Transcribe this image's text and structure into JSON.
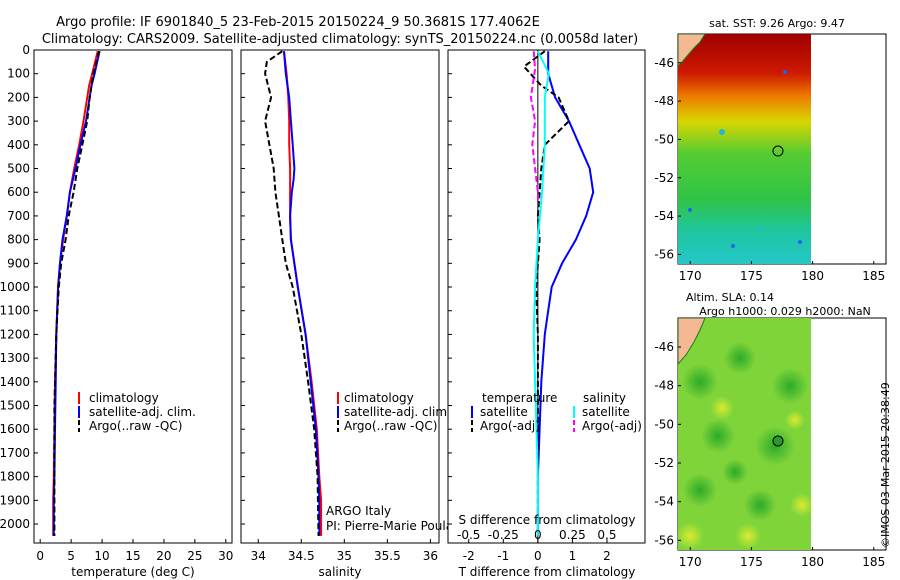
{
  "title": {
    "line1": "Argo profile: IF 6901840_5 23-Feb-2015 20150224_9 50.3681S 177.4062E",
    "line2": "Climatology: CARS2009. Satellite-adjusted climatology: synTS_20150224.nc (0.0058d later)"
  },
  "colors": {
    "climatology": "#ff0000",
    "satellite": "#0000ff",
    "argo": "#000000",
    "sal_satellite": "#00ffff",
    "sal_argo": "#ff00ff",
    "land": "#f4b992"
  },
  "chart_data": [
    {
      "id": "temperature",
      "type": "line",
      "xlabel": "temperature (deg C)",
      "ylabel": "",
      "xlim": [
        -1,
        31
      ],
      "ylim": [
        2080,
        0
      ],
      "xticks": [
        0,
        5,
        10,
        15,
        20,
        25,
        30
      ],
      "yticks": [
        0,
        100,
        200,
        300,
        400,
        500,
        600,
        700,
        800,
        900,
        1000,
        1100,
        1200,
        1300,
        1400,
        1500,
        1600,
        1700,
        1800,
        1900,
        2000
      ],
      "legend": [
        "climatology",
        "satellite-adj. clim.",
        "Argo(..raw -QC)"
      ],
      "series": [
        {
          "name": "climatology",
          "x": [
            9.3,
            8.4,
            7.9,
            7.0,
            6.3,
            5.5,
            4.8,
            4.3,
            3.7,
            3.2,
            2.9,
            2.6,
            2.4,
            2.3,
            2.2,
            2.1,
            2.1
          ],
          "y": [
            5,
            100,
            150,
            300,
            400,
            500,
            600,
            700,
            800,
            900,
            1000,
            1200,
            1400,
            1600,
            1800,
            1900,
            2050
          ]
        },
        {
          "name": "satellite-adj. clim.",
          "x": [
            9.6,
            8.8,
            8.3,
            7.4,
            6.5,
            5.7,
            4.8,
            4.3,
            3.6,
            3.2,
            2.9,
            2.6,
            2.5,
            2.4,
            2.3,
            2.2,
            2.2
          ],
          "y": [
            5,
            100,
            150,
            300,
            400,
            500,
            600,
            700,
            800,
            900,
            1000,
            1200,
            1400,
            1600,
            1800,
            1900,
            2050
          ]
        },
        {
          "name": "Argo(..raw -QC)",
          "x": [
            9.5,
            9.0,
            8.6,
            8.0,
            7.6,
            6.8,
            6.0,
            5.4,
            4.6,
            4.1,
            3.4,
            3.0,
            2.8,
            2.6,
            2.5,
            2.3,
            2.3
          ],
          "y": [
            5,
            60,
            100,
            200,
            300,
            400,
            500,
            600,
            700,
            800,
            900,
            1000,
            1100,
            1200,
            1300,
            1500,
            2050
          ]
        }
      ]
    },
    {
      "id": "salinity",
      "type": "line",
      "xlabel": "salinity",
      "xlim": [
        33.8,
        36.1
      ],
      "ylim": [
        2080,
        0
      ],
      "xticks": [
        34,
        34.5,
        35,
        35.5,
        36
      ],
      "legend": [
        "climatology",
        "satellite-adj. clim.",
        "Argo(..raw -QC)"
      ],
      "annotations": [
        "ARGO Italy",
        "PI: Pierre-Marie Poulain"
      ],
      "series": [
        {
          "name": "climatology",
          "x": [
            34.3,
            34.33,
            34.35,
            34.36,
            34.36,
            34.37,
            34.37,
            34.37,
            34.38,
            34.46,
            34.55,
            34.62,
            34.68,
            34.71,
            34.73,
            34.73
          ],
          "y": [
            5,
            100,
            200,
            300,
            400,
            500,
            600,
            700,
            800,
            1000,
            1200,
            1400,
            1600,
            1800,
            1900,
            2050
          ]
        },
        {
          "name": "satellite-adj. clim.",
          "x": [
            34.3,
            34.32,
            34.36,
            34.38,
            34.4,
            34.42,
            34.41,
            34.39,
            34.37,
            34.38,
            34.46,
            34.55,
            34.61,
            34.67,
            34.7,
            34.71,
            34.71
          ],
          "y": [
            5,
            100,
            200,
            300,
            400,
            500,
            550,
            600,
            700,
            800,
            1000,
            1200,
            1400,
            1600,
            1800,
            1900,
            2050
          ]
        },
        {
          "name": "Argo(..raw -QC)",
          "x": [
            34.28,
            34.1,
            34.08,
            34.15,
            34.08,
            34.13,
            34.18,
            34.2,
            34.24,
            34.28,
            34.32,
            34.4,
            34.5,
            34.58,
            34.65,
            34.69,
            34.7
          ],
          "y": [
            5,
            50,
            100,
            200,
            300,
            400,
            500,
            600,
            700,
            800,
            900,
            1000,
            1200,
            1400,
            1600,
            1800,
            2050
          ]
        }
      ]
    },
    {
      "id": "difference",
      "type": "line",
      "xlabel": "T difference from climatology",
      "x2label": "S difference from climatology",
      "xlim": [
        -2.6,
        3.1
      ],
      "x2lim": [
        -0.65,
        0.775
      ],
      "ylim": [
        2080,
        0
      ],
      "xticks": [
        -2,
        -1,
        0,
        1,
        2
      ],
      "x2ticks": [
        -0.5,
        -0.25,
        0,
        0.25,
        0.5
      ],
      "legend": {
        "temperature_title": "temperature",
        "salinity_title": "salinity",
        "temperature": [
          "satellite",
          "Argo(-adj)"
        ],
        "salinity": [
          "satellite",
          "Argo(-adj)"
        ]
      },
      "series": [
        {
          "name": "temperature satellite",
          "axis": "T",
          "x": [
            0.3,
            0.3,
            0.5,
            0.9,
            1.2,
            1.5,
            1.6,
            1.4,
            1.1,
            0.7,
            0.4,
            0.3,
            0.2,
            0.1,
            0.05,
            0.0,
            0.0
          ],
          "y": [
            5,
            100,
            200,
            300,
            400,
            500,
            600,
            700,
            800,
            900,
            1000,
            1100,
            1200,
            1400,
            1600,
            1800,
            2050
          ]
        },
        {
          "name": "temperature Argo(-adj)",
          "axis": "T",
          "x": [
            0.2,
            -0.4,
            0.1,
            0.6,
            0.9,
            0.2,
            0.1,
            0.05,
            0.0,
            0.05,
            0.0,
            -0.05,
            0.0,
            0.0,
            0.0,
            0.0,
            0.0
          ],
          "y": [
            5,
            70,
            150,
            200,
            300,
            400,
            500,
            600,
            700,
            800,
            900,
            1000,
            1200,
            1400,
            1600,
            1800,
            2050
          ]
        },
        {
          "name": "salinity satellite",
          "axis": "S",
          "x": [
            0.0,
            0.08,
            0.05,
            0.05,
            0.05,
            0.04,
            0.03,
            0.0,
            -0.02,
            -0.03,
            -0.02,
            -0.01,
            0.0,
            0.0,
            0.0
          ],
          "y": [
            5,
            100,
            200,
            300,
            400,
            500,
            600,
            800,
            1000,
            1200,
            1400,
            1600,
            1800,
            1900,
            2050
          ]
        },
        {
          "name": "salinity Argo(-adj)",
          "axis": "S",
          "x": [
            -0.03,
            -0.02,
            -0.05,
            -0.02,
            -0.04,
            -0.02,
            0.0,
            0.0
          ],
          "y": [
            5,
            80,
            200,
            300,
            400,
            500,
            600,
            650
          ]
        }
      ]
    },
    {
      "id": "map-sst",
      "type": "heatmap",
      "title": "sat. SST: 9.26 Argo: 9.47",
      "xlim": [
        169,
        186
      ],
      "ylim": [
        -56.5,
        -44.5
      ],
      "xticks": [
        170,
        175,
        180,
        185
      ],
      "yticks": [
        -46,
        -48,
        -50,
        -52,
        -54,
        -56
      ],
      "marker": {
        "lon": 177.4,
        "lat": -50.37
      }
    },
    {
      "id": "map-sla",
      "type": "heatmap",
      "title": "Altim. SLA: 0.14",
      "subtitle": "Argo h1000: 0.029 h2000: NaN",
      "xlim": [
        169,
        186
      ],
      "ylim": [
        -56.5,
        -44.5
      ],
      "xticks": [
        170,
        175,
        180,
        185
      ],
      "yticks": [
        -46,
        -48,
        -50,
        -52,
        -54,
        -56
      ],
      "marker": {
        "lon": 177.4,
        "lat": -50.37
      }
    }
  ],
  "credit": "©IMOS 03-Mar-2015 20:38:49"
}
